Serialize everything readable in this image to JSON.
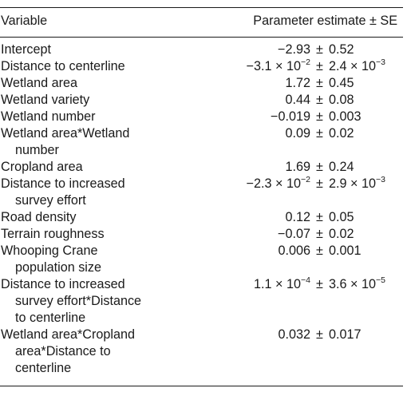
{
  "table": {
    "header": {
      "variable": "Variable",
      "estimate": "Parameter estimate ± SE"
    },
    "pm_symbol": "±",
    "rows": [
      {
        "variable_lines": [
          "Intercept"
        ],
        "estimate": "−2.93",
        "se": "0.52"
      },
      {
        "variable_lines": [
          "Distance to centerline"
        ],
        "estimate": "−3.1 × 10^−2",
        "se": "2.4 × 10^−3"
      },
      {
        "variable_lines": [
          "Wetland area"
        ],
        "estimate": "1.72",
        "se": "0.45"
      },
      {
        "variable_lines": [
          "Wetland variety"
        ],
        "estimate": "0.44",
        "se": "0.08"
      },
      {
        "variable_lines": [
          "Wetland number"
        ],
        "estimate": "−0.019",
        "se": "0.003"
      },
      {
        "variable_lines": [
          "Wetland area*Wetland",
          "number"
        ],
        "estimate": "0.09",
        "se": "0.02"
      },
      {
        "variable_lines": [
          "Cropland area"
        ],
        "estimate": "1.69",
        "se": "0.24"
      },
      {
        "variable_lines": [
          "Distance to increased",
          "survey effort"
        ],
        "estimate": "−2.3 × 10^−2",
        "se": "2.9 × 10^−3"
      },
      {
        "variable_lines": [
          "Road density"
        ],
        "estimate": "0.12",
        "se": "0.05"
      },
      {
        "variable_lines": [
          "Terrain roughness"
        ],
        "estimate": "−0.07",
        "se": "0.02"
      },
      {
        "variable_lines": [
          "Whooping Crane",
          "population size"
        ],
        "estimate": "0.006",
        "se": "0.001"
      },
      {
        "variable_lines": [
          "Distance to increased",
          "survey effort*Distance",
          "to centerline"
        ],
        "estimate": "1.1 × 10^−4",
        "se": "3.6 × 10^−5"
      },
      {
        "variable_lines": [
          "Wetland area*Cropland",
          "area*Distance to",
          "centerline"
        ],
        "estimate": "0.032",
        "se": "0.017"
      }
    ]
  }
}
